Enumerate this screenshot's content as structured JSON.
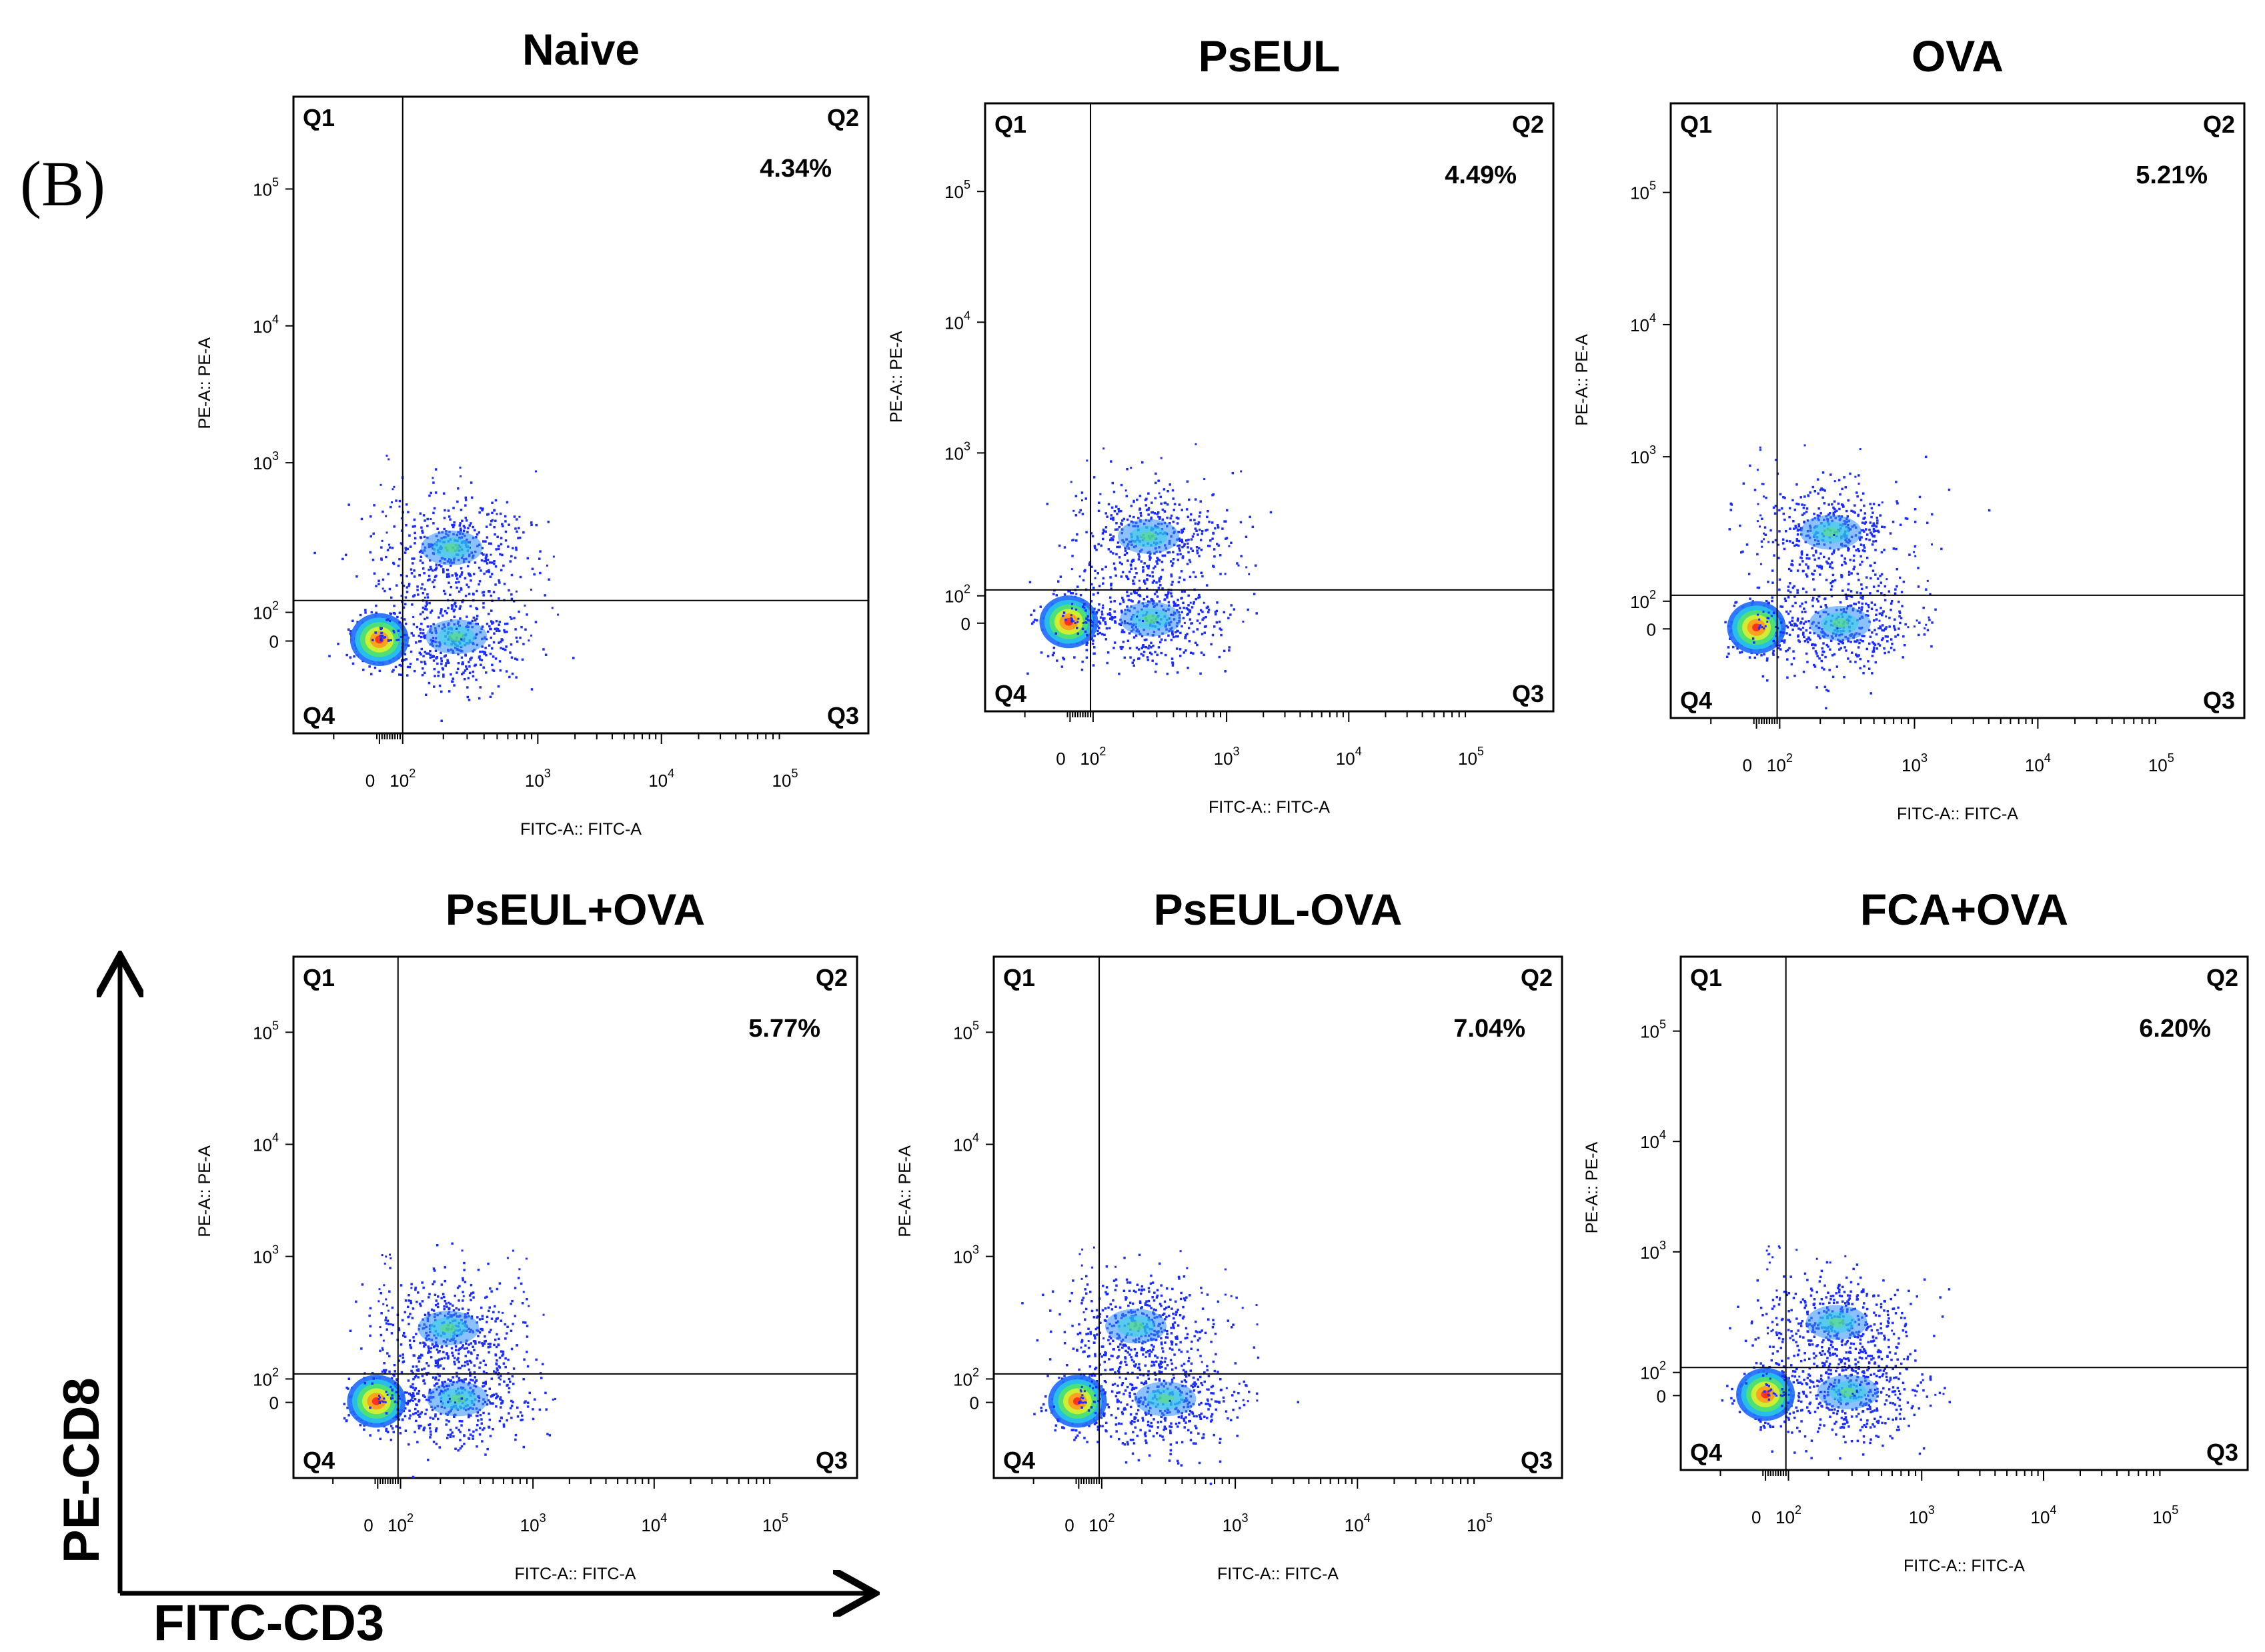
{
  "panel_label": "(B)",
  "overall_axes": {
    "x_label": "FITC-CD3",
    "y_label": "PE-CD8"
  },
  "chart_data": [
    {
      "type": "scatter",
      "title": "Naive",
      "xlabel": "FITC-A:: FITC-A",
      "ylabel": "PE-A:: PE-A",
      "scale": "biexponential",
      "x_ticks": [
        "0",
        "10^2",
        "10^3",
        "10^4",
        "10^5"
      ],
      "y_ticks": [
        "0",
        "10^2",
        "10^3",
        "10^4",
        "10^5"
      ],
      "quadrant_gate": {
        "x": 100,
        "y": 120
      },
      "quadrants": [
        "Q1",
        "Q2",
        "Q3",
        "Q4"
      ],
      "q2_percent": "4.34%",
      "populations": [
        {
          "name": "double-negative",
          "x": 10,
          "y": 5,
          "density": "high"
        },
        {
          "name": "CD3+CD8-",
          "x": 250,
          "y": 15,
          "density": "medium"
        },
        {
          "name": "CD3+CD8+",
          "x": 230,
          "y": 270,
          "density": "medium"
        }
      ]
    },
    {
      "type": "scatter",
      "title": "PsEUL",
      "xlabel": "FITC-A:: FITC-A",
      "ylabel": "PE-A:: PE-A",
      "scale": "biexponential",
      "x_ticks": [
        "0",
        "10^2",
        "10^3",
        "10^4",
        "10^5"
      ],
      "y_ticks": [
        "0",
        "10^2",
        "10^3",
        "10^4",
        "10^5"
      ],
      "quadrant_gate": {
        "x": 90,
        "y": 110
      },
      "quadrants": [
        "Q1",
        "Q2",
        "Q3",
        "Q4"
      ],
      "q2_percent": "4.49%",
      "populations": [
        {
          "name": "double-negative",
          "x": 5,
          "y": 5,
          "density": "high"
        },
        {
          "name": "CD3+CD8-",
          "x": 270,
          "y": 15,
          "density": "medium"
        },
        {
          "name": "CD3+CD8+",
          "x": 260,
          "y": 260,
          "density": "medium"
        }
      ]
    },
    {
      "type": "scatter",
      "title": "OVA",
      "xlabel": "FITC-A:: FITC-A",
      "ylabel": "PE-A:: PE-A",
      "scale": "biexponential",
      "x_ticks": [
        "0",
        "10^2",
        "10^3",
        "10^4",
        "10^5"
      ],
      "y_ticks": [
        "0",
        "10^2",
        "10^3",
        "10^4",
        "10^5"
      ],
      "quadrant_gate": {
        "x": 90,
        "y": 110
      },
      "quadrants": [
        "Q1",
        "Q2",
        "Q3",
        "Q4"
      ],
      "q2_percent": "5.21%",
      "populations": [
        {
          "name": "double-negative",
          "x": 10,
          "y": 5,
          "density": "high"
        },
        {
          "name": "CD3+CD8-",
          "x": 280,
          "y": 20,
          "density": "medium"
        },
        {
          "name": "CD3+CD8+",
          "x": 240,
          "y": 300,
          "density": "medium"
        }
      ]
    },
    {
      "type": "scatter",
      "title": "PsEUL+OVA",
      "xlabel": "FITC-A:: FITC-A",
      "ylabel": "PE-A:: PE-A",
      "scale": "biexponential",
      "x_ticks": [
        "0",
        "10^2",
        "10^3",
        "10^4",
        "10^5"
      ],
      "y_ticks": [
        "0",
        "10^2",
        "10^3",
        "10^4",
        "10^5"
      ],
      "quadrant_gate": {
        "x": 90,
        "y": 110
      },
      "quadrants": [
        "Q1",
        "Q2",
        "Q3",
        "Q4"
      ],
      "q2_percent": "5.77%",
      "populations": [
        {
          "name": "double-negative",
          "x": 5,
          "y": 5,
          "density": "high"
        },
        {
          "name": "CD3+CD8-",
          "x": 270,
          "y": 15,
          "density": "medium"
        },
        {
          "name": "CD3+CD8+",
          "x": 230,
          "y": 260,
          "density": "medium"
        }
      ]
    },
    {
      "type": "scatter",
      "title": "PsEUL-OVA",
      "xlabel": "FITC-A:: FITC-A",
      "ylabel": "PE-A:: PE-A",
      "scale": "biexponential",
      "x_ticks": [
        "0",
        "10^2",
        "10^3",
        "10^4",
        "10^5"
      ],
      "y_ticks": [
        "0",
        "10^2",
        "10^3",
        "10^4",
        "10^5"
      ],
      "quadrant_gate": {
        "x": 90,
        "y": 110
      },
      "quadrants": [
        "Q1",
        "Q2",
        "Q3",
        "Q4"
      ],
      "q2_percent": "7.04%",
      "populations": [
        {
          "name": "double-negative",
          "x": 5,
          "y": 5,
          "density": "high"
        },
        {
          "name": "CD3+CD8-",
          "x": 300,
          "y": 15,
          "density": "medium"
        },
        {
          "name": "CD3+CD8+",
          "x": 180,
          "y": 270,
          "density": "medium"
        }
      ]
    },
    {
      "type": "scatter",
      "title": "FCA+OVA",
      "xlabel": "FITC-A:: FITC-A",
      "ylabel": "PE-A:: PE-A",
      "scale": "biexponential",
      "x_ticks": [
        "0",
        "10^2",
        "10^3",
        "10^4",
        "10^5"
      ],
      "y_ticks": [
        "0",
        "10^2",
        "10^3",
        "10^4",
        "10^5"
      ],
      "quadrant_gate": {
        "x": 90,
        "y": 110
      },
      "quadrants": [
        "Q1",
        "Q2",
        "Q3",
        "Q4"
      ],
      "q2_percent": "6.20%",
      "populations": [
        {
          "name": "double-negative",
          "x": 10,
          "y": 5,
          "density": "high"
        },
        {
          "name": "CD3+CD8-",
          "x": 280,
          "y": 15,
          "density": "medium"
        },
        {
          "name": "CD3+CD8+",
          "x": 230,
          "y": 260,
          "density": "medium"
        }
      ]
    }
  ]
}
